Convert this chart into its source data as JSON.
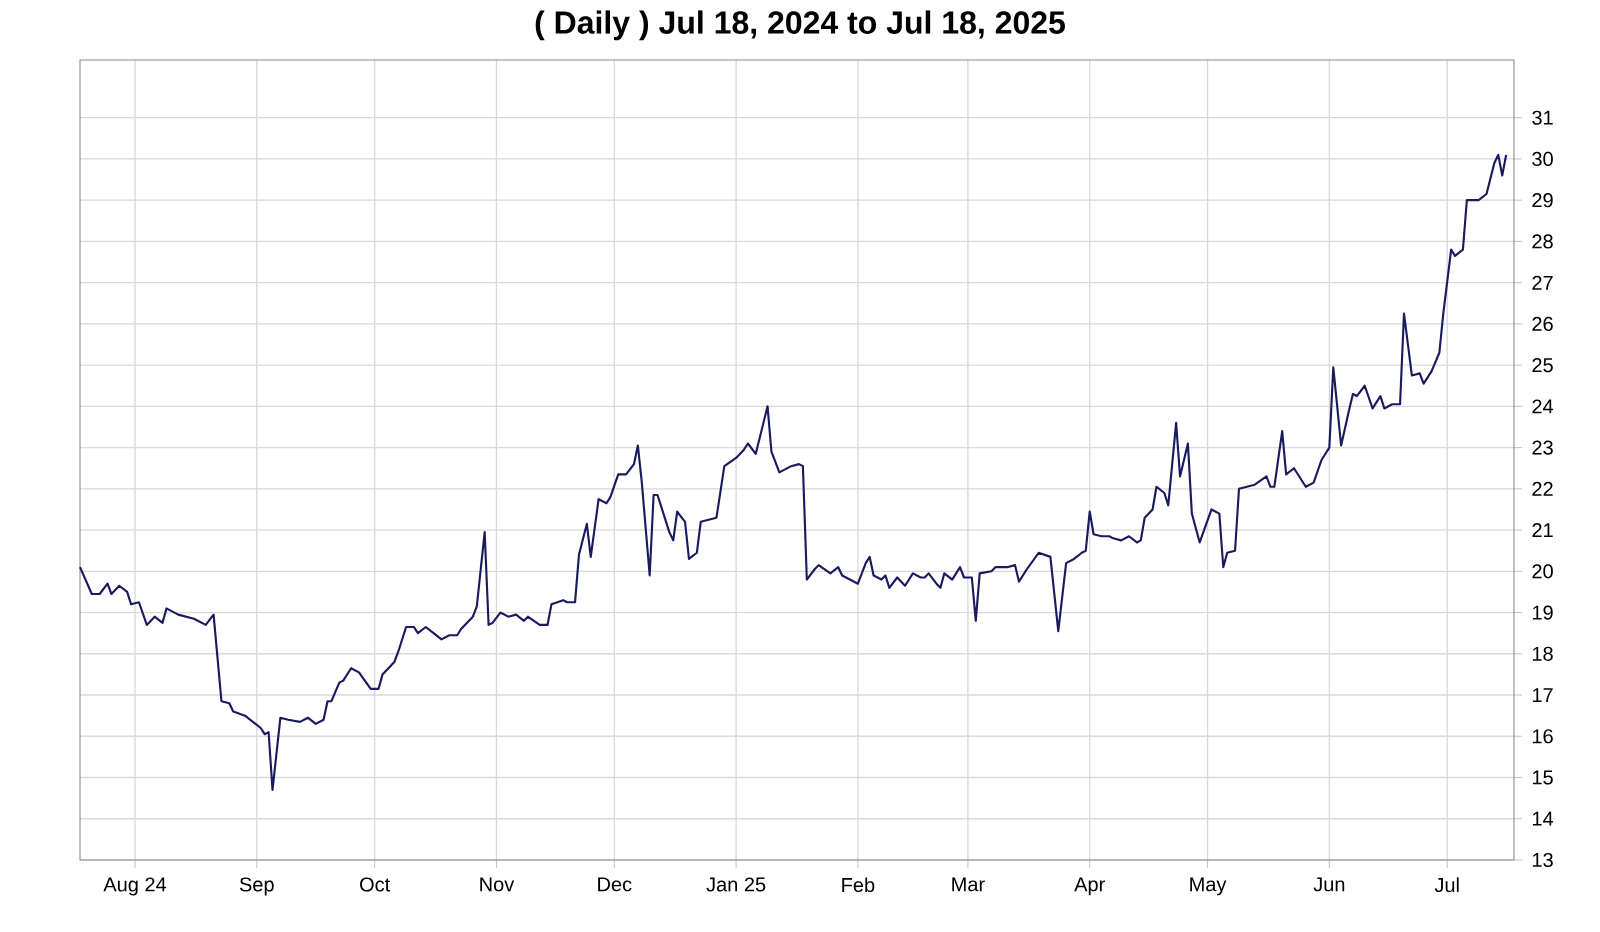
{
  "chart_data": {
    "type": "line",
    "title": "( Daily ) Jul 18, 2024 to Jul 18, 2025",
    "xlim": [
      "2024-07-18",
      "2025-07-18"
    ],
    "xticks": [
      {
        "value": "2024-08-01",
        "label": "Aug 24"
      },
      {
        "value": "2024-09-01",
        "label": "Sep"
      },
      {
        "value": "2024-10-01",
        "label": "Oct"
      },
      {
        "value": "2024-11-01",
        "label": "Nov"
      },
      {
        "value": "2024-12-01",
        "label": "Dec"
      },
      {
        "value": "2025-01-01",
        "label": "Jan 25"
      },
      {
        "value": "2025-02-01",
        "label": "Feb"
      },
      {
        "value": "2025-03-01",
        "label": "Mar"
      },
      {
        "value": "2025-04-01",
        "label": "Apr"
      },
      {
        "value": "2025-05-01",
        "label": "May"
      },
      {
        "value": "2025-06-01",
        "label": "Jun"
      },
      {
        "value": "2025-07-01",
        "label": "Jul"
      }
    ],
    "ylim": [
      13,
      32.4
    ],
    "yticks": [
      13,
      14,
      15,
      16,
      17,
      18,
      19,
      20,
      21,
      22,
      23,
      24,
      25,
      26,
      27,
      28,
      29,
      30,
      31
    ],
    "grid": true,
    "marker": "none",
    "line_style": "solid",
    "series": [
      {
        "color": "#1a1a5e",
        "x": [
          "2024-07-18",
          "2024-07-21",
          "2024-07-23",
          "2024-07-25",
          "2024-07-26",
          "2024-07-28",
          "2024-07-30",
          "2024-07-31",
          "2024-08-02",
          "2024-08-04",
          "2024-08-06",
          "2024-08-08",
          "2024-08-09",
          "2024-08-12",
          "2024-08-16",
          "2024-08-19",
          "2024-08-21",
          "2024-08-23",
          "2024-08-25",
          "2024-08-26",
          "2024-08-29",
          "2024-09-02",
          "2024-09-03",
          "2024-09-04",
          "2024-09-05",
          "2024-09-07",
          "2024-09-09",
          "2024-09-12",
          "2024-09-14",
          "2024-09-16",
          "2024-09-18",
          "2024-09-19",
          "2024-09-20",
          "2024-09-22",
          "2024-09-23",
          "2024-09-25",
          "2024-09-27",
          "2024-09-30",
          "2024-10-02",
          "2024-10-03",
          "2024-10-06",
          "2024-10-07",
          "2024-10-09",
          "2024-10-11",
          "2024-10-12",
          "2024-10-14",
          "2024-10-16",
          "2024-10-18",
          "2024-10-20",
          "2024-10-22",
          "2024-10-23",
          "2024-10-26",
          "2024-10-27",
          "2024-10-29",
          "2024-10-30",
          "2024-10-31",
          "2024-11-02",
          "2024-11-04",
          "2024-11-06",
          "2024-11-08",
          "2024-11-09",
          "2024-11-12",
          "2024-11-14",
          "2024-11-15",
          "2024-11-18",
          "2024-11-19",
          "2024-11-21",
          "2024-11-22",
          "2024-11-24",
          "2024-11-25",
          "2024-11-27",
          "2024-11-29",
          "2024-11-30",
          "2024-12-02",
          "2024-12-04",
          "2024-12-06",
          "2024-12-07",
          "2024-12-08",
          "2024-12-10",
          "2024-12-11",
          "2024-12-12",
          "2024-12-15",
          "2024-12-16",
          "2024-12-17",
          "2024-12-19",
          "2024-12-20",
          "2024-12-22",
          "2024-12-23",
          "2024-12-25",
          "2024-12-27",
          "2024-12-29",
          "2025-01-01",
          "2025-01-03",
          "2025-01-04",
          "2025-01-06",
          "2025-01-09",
          "2025-01-10",
          "2025-01-12",
          "2025-01-15",
          "2025-01-17",
          "2025-01-18",
          "2025-01-19",
          "2025-01-21",
          "2025-01-22",
          "2025-01-25",
          "2025-01-27",
          "2025-01-28",
          "2025-02-01",
          "2025-02-03",
          "2025-02-04",
          "2025-02-05",
          "2025-02-07",
          "2025-02-08",
          "2025-02-09",
          "2025-02-11",
          "2025-02-13",
          "2025-02-15",
          "2025-02-17",
          "2025-02-18",
          "2025-02-19",
          "2025-02-21",
          "2025-02-22",
          "2025-02-23",
          "2025-02-25",
          "2025-02-27",
          "2025-02-28",
          "2025-03-02",
          "2025-03-03",
          "2025-03-04",
          "2025-03-07",
          "2025-03-08",
          "2025-03-11",
          "2025-03-13",
          "2025-03-14",
          "2025-03-16",
          "2025-03-19",
          "2025-03-22",
          "2025-03-24",
          "2025-03-26",
          "2025-03-28",
          "2025-03-30",
          "2025-03-31",
          "2025-04-01",
          "2025-04-02",
          "2025-04-04",
          "2025-04-06",
          "2025-04-07",
          "2025-04-09",
          "2025-04-11",
          "2025-04-13",
          "2025-04-14",
          "2025-04-15",
          "2025-04-17",
          "2025-04-18",
          "2025-04-20",
          "2025-04-21",
          "2025-04-23",
          "2025-04-24",
          "2025-04-26",
          "2025-04-27",
          "2025-04-29",
          "2025-05-02",
          "2025-05-04",
          "2025-05-05",
          "2025-05-06",
          "2025-05-08",
          "2025-05-09",
          "2025-05-11",
          "2025-05-13",
          "2025-05-16",
          "2025-05-17",
          "2025-05-18",
          "2025-05-20",
          "2025-05-21",
          "2025-05-23",
          "2025-05-26",
          "2025-05-28",
          "2025-05-30",
          "2025-06-01",
          "2025-06-02",
          "2025-06-04",
          "2025-06-06",
          "2025-06-07",
          "2025-06-08",
          "2025-06-10",
          "2025-06-12",
          "2025-06-14",
          "2025-06-15",
          "2025-06-17",
          "2025-06-19",
          "2025-06-20",
          "2025-06-22",
          "2025-06-24",
          "2025-06-25",
          "2025-06-27",
          "2025-06-29",
          "2025-06-30",
          "2025-07-02",
          "2025-07-03",
          "2025-07-05",
          "2025-07-06",
          "2025-07-09",
          "2025-07-11",
          "2025-07-13",
          "2025-07-14",
          "2025-07-15",
          "2025-07-16"
        ],
        "values": [
          20.1,
          19.45,
          19.45,
          19.7,
          19.45,
          19.65,
          19.5,
          19.2,
          19.25,
          18.7,
          18.9,
          18.75,
          19.1,
          18.95,
          18.85,
          18.7,
          18.95,
          16.85,
          16.8,
          16.6,
          16.5,
          16.2,
          16.05,
          16.1,
          14.7,
          16.45,
          16.4,
          16.35,
          16.45,
          16.3,
          16.4,
          16.85,
          16.85,
          17.3,
          17.35,
          17.65,
          17.55,
          17.15,
          17.15,
          17.5,
          17.8,
          18.05,
          18.65,
          18.65,
          18.5,
          18.65,
          18.5,
          18.35,
          18.45,
          18.45,
          18.6,
          18.9,
          19.15,
          20.95,
          18.7,
          18.75,
          19.0,
          18.9,
          18.95,
          18.8,
          18.9,
          18.7,
          18.7,
          19.2,
          19.3,
          19.25,
          19.25,
          20.4,
          21.15,
          20.35,
          21.75,
          21.65,
          21.8,
          22.35,
          22.35,
          22.6,
          23.05,
          22.15,
          19.9,
          21.85,
          21.85,
          20.95,
          20.75,
          21.45,
          21.2,
          20.3,
          20.45,
          21.2,
          21.25,
          21.3,
          22.55,
          22.75,
          22.95,
          23.1,
          22.85,
          24.0,
          22.9,
          22.4,
          22.55,
          22.6,
          22.55,
          19.8,
          20.05,
          20.15,
          19.95,
          20.1,
          19.9,
          19.7,
          20.2,
          20.35,
          19.9,
          19.8,
          19.9,
          19.6,
          19.85,
          19.65,
          19.95,
          19.85,
          19.85,
          19.95,
          19.7,
          19.6,
          19.95,
          19.8,
          20.1,
          19.85,
          19.85,
          18.8,
          19.95,
          20.0,
          20.1,
          20.1,
          20.15,
          19.75,
          20.05,
          20.45,
          20.35,
          18.55,
          20.2,
          20.3,
          20.45,
          20.5,
          21.45,
          20.9,
          20.85,
          20.85,
          20.8,
          20.75,
          20.85,
          20.7,
          20.75,
          21.3,
          21.5,
          22.05,
          21.9,
          21.6,
          23.6,
          22.3,
          23.1,
          21.4,
          20.7,
          21.5,
          21.4,
          20.1,
          20.45,
          20.5,
          22.0,
          22.05,
          22.1,
          22.3,
          22.05,
          22.05,
          23.4,
          22.35,
          22.5,
          22.05,
          22.15,
          22.7,
          23.0,
          24.95,
          23.05,
          23.9,
          24.3,
          24.25,
          24.5,
          23.95,
          24.25,
          23.95,
          24.05,
          24.05,
          26.25,
          24.75,
          24.8,
          24.55,
          24.85,
          25.3,
          26.25,
          27.8,
          27.65,
          27.8,
          29.0,
          29.0,
          29.15,
          29.9,
          30.1,
          29.6,
          30.1
        ]
      }
    ]
  }
}
